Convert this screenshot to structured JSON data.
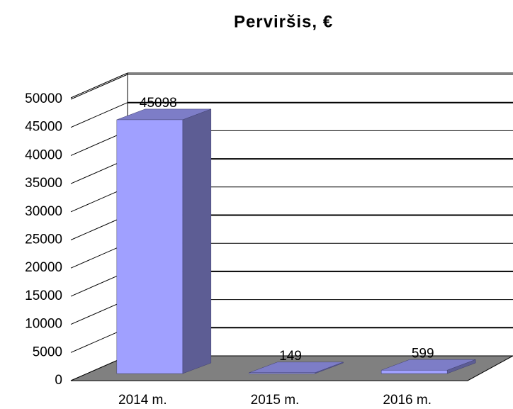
{
  "chart_data": {
    "type": "bar3d",
    "title": "Perviršis, €",
    "categories": [
      "2014 m.",
      "2015 m.",
      "2016 m."
    ],
    "values": [
      45098,
      149,
      599
    ],
    "color": "#a0a0ff",
    "ylim": [
      0,
      50000
    ],
    "yticks": [
      0,
      5000,
      10000,
      15000,
      20000,
      25000,
      30000,
      35000,
      40000,
      45000,
      50000
    ],
    "grid": true
  }
}
